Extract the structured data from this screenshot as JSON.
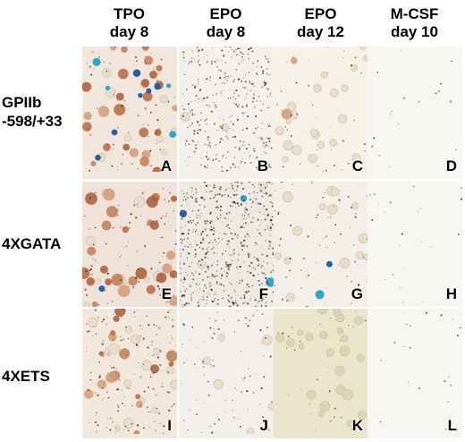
{
  "columns": [
    {
      "line1": "TPO",
      "line2": "day 8"
    },
    {
      "line1": "EPO",
      "line2": "day 8"
    },
    {
      "line1": "EPO",
      "line2": "day 12"
    },
    {
      "line1": "M-CSF",
      "line2": "day 10"
    }
  ],
  "rows": [
    {
      "line1": "GPIIb",
      "line2": "-598/+33"
    },
    {
      "line1": "4XGATA",
      "line2": ""
    },
    {
      "line1": "4XETS",
      "line2": ""
    }
  ],
  "panel_letters": [
    "A",
    "B",
    "C",
    "D",
    "E",
    "F",
    "G",
    "H",
    "I",
    "J",
    "K",
    "L"
  ],
  "colors": {
    "background": "#f2efe9",
    "brown_stain": "#b8704a",
    "blue_stain": "#2fa8c8",
    "dark_dots": "#3a2a22"
  }
}
